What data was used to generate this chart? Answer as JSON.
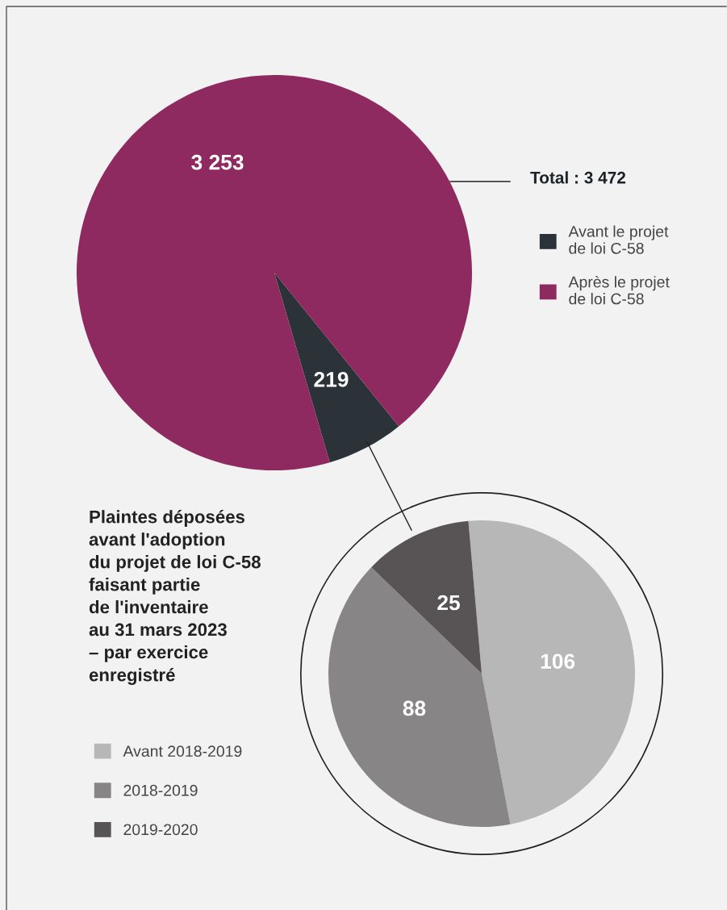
{
  "chart_data": [
    {
      "type": "pie",
      "categories": [
        "Avant le projet\nde loi C-58",
        "Après le projet\nde loi C-58"
      ],
      "values": [
        219,
        3253
      ],
      "colors": [
        "#2b3338",
        "#8e2a60"
      ],
      "value_labels": [
        "219",
        "3 253"
      ],
      "legend": "right",
      "annotations": [
        "Total : 3 472"
      ]
    },
    {
      "type": "pie",
      "title": "Plaintes déposées\navant l'adoption\ndu projet de loi C-58\nfaisant partie\nde l'inventaire\nau 31 mars 2023\n– par exercice\nenregistré",
      "categories": [
        "Avant 2018-2019",
        "2018-2019",
        "2019-2020"
      ],
      "values": [
        106,
        88,
        25
      ],
      "colors": [
        "#b8b7b8",
        "#878586",
        "#585456"
      ],
      "data_labels": true,
      "legend": "left"
    }
  ]
}
